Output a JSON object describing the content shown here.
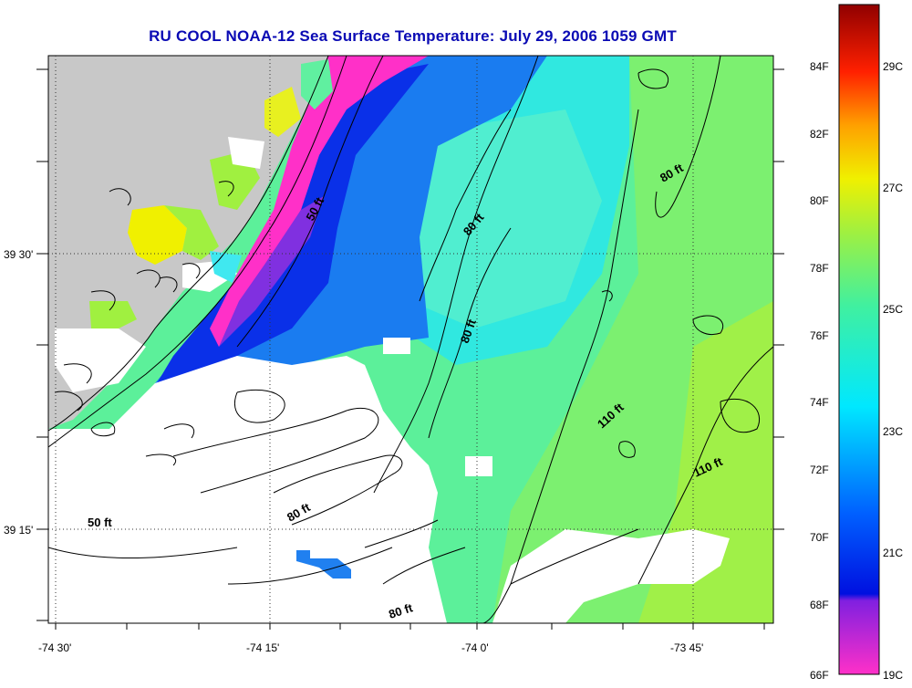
{
  "title": "RU COOL  NOAA-12  Sea Surface Temperature:  July 29, 2006 1059 GMT",
  "axes": {
    "lon_labels": [
      "-74 30'",
      "-74 15'",
      "-74 0'",
      "-73 45'"
    ],
    "lat_labels": [
      "39 30'",
      "39 15'"
    ]
  },
  "contour_labels": [
    "50 ft",
    "80 ft",
    "80 ft",
    "80 ft",
    "110 ft",
    "110 ft",
    "80 ft",
    "80 ft",
    "50 ft"
  ],
  "colorbar": {
    "fahrenheit": [
      "84F",
      "82F",
      "80F",
      "78F",
      "76F",
      "74F",
      "72F",
      "70F",
      "68F",
      "66F"
    ],
    "celsius": [
      "29C",
      "27C",
      "25C",
      "23C",
      "21C",
      "19C"
    ]
  },
  "colors": {
    "land": "#c8c8c8",
    "cloud": "#ffffff",
    "title": "#0a0ab4"
  }
}
